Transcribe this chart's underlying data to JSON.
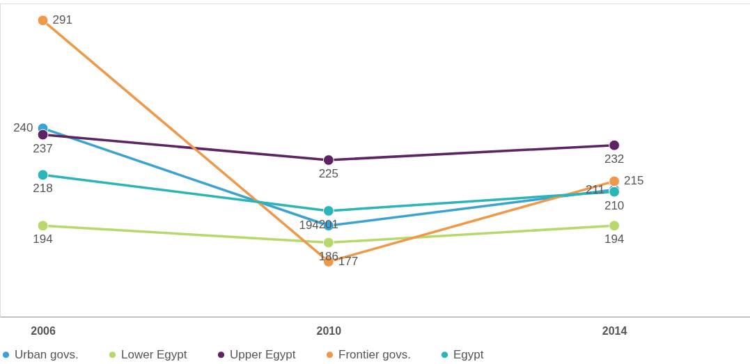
{
  "chart_data": {
    "type": "line",
    "x": [
      2006,
      2010,
      2014
    ],
    "xlim": [
      2005.4,
      2015.9
    ],
    "xticks": [
      2006,
      2010,
      2014
    ],
    "ylim": [
      151,
      299
    ],
    "series": [
      {
        "name": "Urban govs.",
        "color": "#3ba3d4",
        "values": [
          240,
          194,
          211
        ]
      },
      {
        "name": "Lower Egypt",
        "color": "#b5d96a",
        "values": [
          194,
          186,
          194
        ]
      },
      {
        "name": "Upper Egypt",
        "color": "#5c2463",
        "values": [
          237,
          225,
          232
        ]
      },
      {
        "name": "Frontier govs.",
        "color": "#f0984a",
        "values": [
          291,
          177,
          215
        ]
      },
      {
        "name": "Egypt",
        "color": "#2bb5b8",
        "values": [
          218,
          201,
          210
        ]
      }
    ],
    "data_labels": true,
    "legend": "bottom",
    "marker": "circle",
    "grid": false,
    "tick_labels": "x"
  }
}
